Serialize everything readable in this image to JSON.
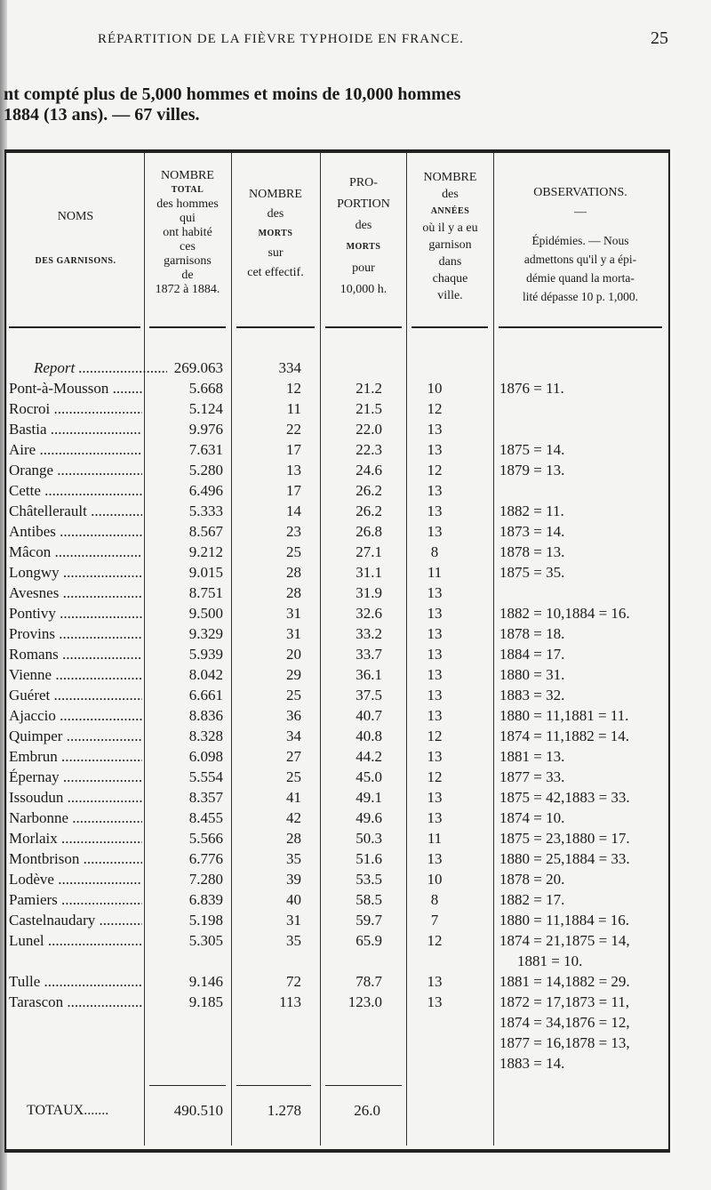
{
  "running_head": "RÉPARTITION DE LA FIÈVRE TYPHOIDE EN FRANCE.",
  "page_number": "25",
  "subtitle_line1": "nt compté plus de 5,000 hommes et moins de 10,000 hommes",
  "subtitle_line2": "1884 (13 ans). — 67 villes.",
  "headers": {
    "noms": [
      "NOMS",
      "DES GARNISONS."
    ],
    "total": [
      "NOMBRE",
      "TOTAL",
      "des hommes",
      "qui",
      "ont habité",
      "ces",
      "garnisons",
      "de",
      "1872 à 1884."
    ],
    "morts": [
      "NOMBRE",
      "des",
      "MORTS",
      "sur",
      "cet effectif."
    ],
    "proportion": [
      "PRO-",
      "PORTION",
      "des",
      "MORTS",
      "pour",
      "10,000 h."
    ],
    "annees": [
      "NOMBRE",
      "des",
      "ANNÉES",
      "où il y a eu",
      "garnison",
      "dans",
      "chaque",
      "ville."
    ],
    "observations": [
      "OBSERVATIONS.",
      "—",
      "Épidémies. — Nous",
      "admettons qu'il y a épi-",
      "démie quand la morta-",
      "lité dépasse 10 p. 1,000."
    ]
  },
  "rows": [
    {
      "name": "Report",
      "total": "269.063",
      "morts": "334",
      "prop": "",
      "annees": "",
      "obs": []
    },
    {
      "name": "Pont-à-Mousson",
      "total": "5.668",
      "morts": "12",
      "prop": "21.2",
      "annees": "10",
      "obs": [
        "1876 = 11."
      ]
    },
    {
      "name": "Rocroi",
      "total": "5.124",
      "morts": "11",
      "prop": "21.5",
      "annees": "12",
      "obs": []
    },
    {
      "name": "Bastia",
      "total": "9.976",
      "morts": "22",
      "prop": "22.0",
      "annees": "13",
      "obs": []
    },
    {
      "name": "Aire",
      "total": "7.631",
      "morts": "17",
      "prop": "22.3",
      "annees": "13",
      "obs": [
        "1875 = 14."
      ]
    },
    {
      "name": "Orange",
      "total": "5.280",
      "morts": "13",
      "prop": "24.6",
      "annees": "12",
      "obs": [
        "1879 = 13."
      ]
    },
    {
      "name": "Cette",
      "total": "6.496",
      "morts": "17",
      "prop": "26.2",
      "annees": "13",
      "obs": []
    },
    {
      "name": "Châtellerault",
      "total": "5.333",
      "morts": "14",
      "prop": "26.2",
      "annees": "13",
      "obs": [
        "1882 = 11."
      ]
    },
    {
      "name": "Antibes",
      "total": "8.567",
      "morts": "23",
      "prop": "26.8",
      "annees": "13",
      "obs": [
        "1873 = 14."
      ]
    },
    {
      "name": "Mâcon",
      "total": "9.212",
      "morts": "25",
      "prop": "27.1",
      "annees": "8",
      "obs": [
        "1878 = 13."
      ]
    },
    {
      "name": "Longwy",
      "total": "9.015",
      "morts": "28",
      "prop": "31.1",
      "annees": "11",
      "obs": [
        "1875 = 35."
      ]
    },
    {
      "name": "Avesnes",
      "total": "8.751",
      "morts": "28",
      "prop": "31.9",
      "annees": "13",
      "obs": []
    },
    {
      "name": "Pontivy",
      "total": "9.500",
      "morts": "31",
      "prop": "32.6",
      "annees": "13",
      "obs": [
        "1882 = 10,1884 = 16."
      ]
    },
    {
      "name": "Provins",
      "total": "9.329",
      "morts": "31",
      "prop": "33.2",
      "annees": "13",
      "obs": [
        "1878 = 18."
      ]
    },
    {
      "name": "Romans",
      "total": "5.939",
      "morts": "20",
      "prop": "33.7",
      "annees": "13",
      "obs": [
        "1884 = 17."
      ]
    },
    {
      "name": "Vienne",
      "total": "8.042",
      "morts": "29",
      "prop": "36.1",
      "annees": "13",
      "obs": [
        "1880 = 31."
      ]
    },
    {
      "name": "Guéret",
      "total": "6.661",
      "morts": "25",
      "prop": "37.5",
      "annees": "13",
      "obs": [
        "1883 = 32."
      ]
    },
    {
      "name": "Ajaccio",
      "total": "8.836",
      "morts": "36",
      "prop": "40.7",
      "annees": "13",
      "obs": [
        "1880 = 11,1881 = 11."
      ]
    },
    {
      "name": "Quimper",
      "total": "8.328",
      "morts": "34",
      "prop": "40.8",
      "annees": "12",
      "obs": [
        "1874 = 11,1882 = 14."
      ]
    },
    {
      "name": "Embrun",
      "total": "6.098",
      "morts": "27",
      "prop": "44.2",
      "annees": "13",
      "obs": [
        "1881 = 13."
      ]
    },
    {
      "name": "Épernay",
      "total": "5.554",
      "morts": "25",
      "prop": "45.0",
      "annees": "12",
      "obs": [
        "1877 = 33."
      ]
    },
    {
      "name": "Issoudun",
      "total": "8.357",
      "morts": "41",
      "prop": "49.1",
      "annees": "13",
      "obs": [
        "1875 = 42,1883 = 33."
      ]
    },
    {
      "name": "Narbonne",
      "total": "8.455",
      "morts": "42",
      "prop": "49.6",
      "annees": "13",
      "obs": [
        "1874 = 10."
      ]
    },
    {
      "name": "Morlaix",
      "total": "5.566",
      "morts": "28",
      "prop": "50.3",
      "annees": "11",
      "obs": [
        "1875 = 23,1880 = 17."
      ]
    },
    {
      "name": "Montbrison",
      "total": "6.776",
      "morts": "35",
      "prop": "51.6",
      "annees": "13",
      "obs": [
        "1880 = 25,1884 = 33."
      ]
    },
    {
      "name": "Lodève",
      "total": "7.280",
      "morts": "39",
      "prop": "53.5",
      "annees": "10",
      "obs": [
        "1878 = 20."
      ]
    },
    {
      "name": "Pamiers",
      "total": "6.839",
      "morts": "40",
      "prop": "58.5",
      "annees": "8",
      "obs": [
        "1882 = 17."
      ]
    },
    {
      "name": "Castelnaudary",
      "total": "5.198",
      "morts": "31",
      "prop": "59.7",
      "annees": "7",
      "obs": [
        "1880 = 11,1884 = 16."
      ]
    },
    {
      "name": "Lunel",
      "total": "5.305",
      "morts": "35",
      "prop": "65.9",
      "annees": "12",
      "obs": [
        "1874 = 21,1875 = 14,",
        "   1881 = 10."
      ]
    },
    {
      "name": "Tulle",
      "total": "9.146",
      "morts": "72",
      "prop": "78.7",
      "annees": "13",
      "obs": [
        "1881 = 14,1882 = 29."
      ]
    },
    {
      "name": "Tarascon",
      "total": "9.185",
      "morts": "113",
      "prop": "123.0",
      "annees": "13",
      "obs": [
        "1872 = 17,1873 = 11,",
        "1874 = 34,1876 = 12,",
        "1877 = 16,1878 = 13,",
        "1883 = 14."
      ]
    }
  ],
  "totals": {
    "label": "TOTAUX",
    "total": "490.510",
    "morts": "1.278",
    "prop": "26.0"
  }
}
